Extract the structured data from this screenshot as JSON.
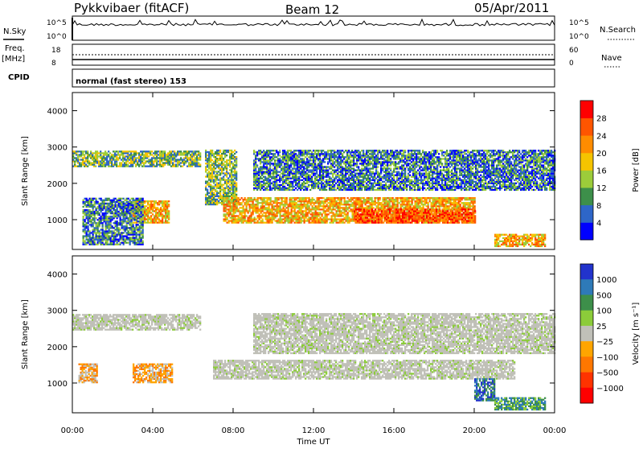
{
  "header": {
    "station": "Pykkvibaer (fitACF)",
    "beam": "Beam 12",
    "date": "05/Apr/2011"
  },
  "top_panels": {
    "nsky_label": "N.Sky",
    "nsky_ticks": [
      "10^5",
      "10^0"
    ],
    "nsearch_label": "N.Search",
    "nsearch_ticks": [
      "10^5",
      "10^0"
    ],
    "freq_label": "Freq.",
    "freq_unit": "[MHz]",
    "freq_ticks": [
      "18",
      "8"
    ],
    "nave_label": "Nave",
    "nave_ticks": [
      "60",
      "0"
    ],
    "cpid_label": "CPID",
    "cpid_text": "normal (fast stereo) 153"
  },
  "chart_data": [
    {
      "type": "heatmap",
      "name": "power",
      "ylabel": "Slant Range [km]",
      "xlabel": "Time UT",
      "xlim": [
        "00:00",
        "24:00"
      ],
      "ylim": [
        180,
        4500
      ],
      "x_ticks": [
        "00:00",
        "04:00",
        "08:00",
        "12:00",
        "16:00",
        "20:00",
        "00:00"
      ],
      "y_ticks": [
        "1000",
        "2000",
        "3000",
        "4000"
      ],
      "colorbar": {
        "label": "Power [dB]",
        "ticks": [
          "4",
          "8",
          "12",
          "16",
          "20",
          "24",
          "28"
        ],
        "colors": [
          "#0000ff",
          "#2e66c8",
          "#3d8f4a",
          "#9ccc3a",
          "#f5c400",
          "#ff8c00",
          "#ff5500",
          "#ff0000"
        ]
      },
      "bands": [
        {
          "t0": 0.0,
          "t1": 6.4,
          "r0": 2450,
          "r1": 2900,
          "level": "mid"
        },
        {
          "t0": 6.6,
          "t1": 8.2,
          "r0": 1400,
          "r1": 2900,
          "level": "mid"
        },
        {
          "t0": 7.5,
          "t1": 20.0,
          "r0": 900,
          "r1": 1600,
          "level": "high"
        },
        {
          "t0": 14.0,
          "t1": 20.0,
          "r0": 900,
          "r1": 1300,
          "level": "peak"
        },
        {
          "t0": 9.0,
          "t1": 24.0,
          "r0": 1800,
          "r1": 2900,
          "level": "low"
        },
        {
          "t0": 3.0,
          "t1": 4.8,
          "r0": 900,
          "r1": 1500,
          "level": "high"
        },
        {
          "t0": 0.5,
          "t1": 3.5,
          "r0": 300,
          "r1": 1600,
          "level": "low"
        },
        {
          "t0": 21.0,
          "t1": 23.5,
          "r0": 250,
          "r1": 600,
          "level": "high"
        }
      ]
    },
    {
      "type": "heatmap",
      "name": "velocity",
      "ylabel": "Slant Range [km]",
      "xlabel": "Time UT",
      "xlim": [
        "00:00",
        "24:00"
      ],
      "ylim": [
        180,
        4500
      ],
      "x_ticks": [
        "00:00",
        "04:00",
        "08:00",
        "12:00",
        "16:00",
        "20:00",
        "00:00"
      ],
      "y_ticks": [
        "1000",
        "2000",
        "3000",
        "4000"
      ],
      "colorbar": {
        "label": "Velocity [m s⁻¹]",
        "ticks": [
          "1000",
          "500",
          "100",
          "25",
          "−25",
          "−100",
          "−500",
          "−1000"
        ],
        "colors": [
          "#2233cc",
          "#2e7ab8",
          "#3d8f4a",
          "#8ccc3a",
          "#c0c0b8",
          "#ffa500",
          "#ff7700",
          "#ff3300",
          "#ff0000"
        ]
      },
      "bands": [
        {
          "t0": 0.0,
          "t1": 6.4,
          "r0": 2450,
          "r1": 2900,
          "level": "gray"
        },
        {
          "t0": 7.0,
          "t1": 22.0,
          "r0": 1100,
          "r1": 1600,
          "level": "gray"
        },
        {
          "t0": 9.0,
          "t1": 24.0,
          "r0": 1800,
          "r1": 2900,
          "level": "gray"
        },
        {
          "t0": 0.3,
          "t1": 1.2,
          "r0": 1000,
          "r1": 1500,
          "level": "orange"
        },
        {
          "t0": 3.0,
          "t1": 5.0,
          "r0": 1000,
          "r1": 1500,
          "level": "orange"
        },
        {
          "t0": 20.0,
          "t1": 21.0,
          "r0": 500,
          "r1": 1100,
          "level": "blue"
        },
        {
          "t0": 21.0,
          "t1": 23.5,
          "r0": 250,
          "r1": 600,
          "level": "green"
        }
      ]
    }
  ],
  "axis": {
    "time_label": "Time UT"
  }
}
